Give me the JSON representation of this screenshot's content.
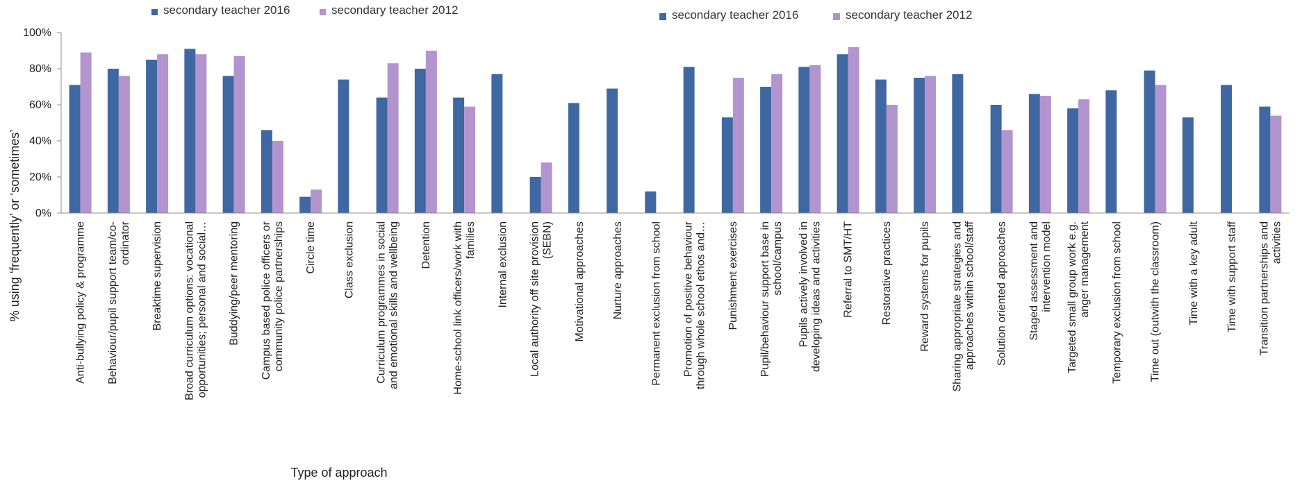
{
  "chart_data": {
    "type": "bar",
    "xlabel": "Type of approach",
    "ylabel": "% using ‘frequently’ or ‘sometimes’",
    "ylim": [
      0,
      100
    ],
    "yticks": [
      "0%",
      "20%",
      "40%",
      "60%",
      "80%",
      "100%"
    ],
    "legend_position": "top",
    "legend_repeated": true,
    "categories": [
      [
        "Anti-bullying policy & programme"
      ],
      [
        "Behaviour/pupil support team/co-",
        "ordinator"
      ],
      [
        "Breaktime supervision"
      ],
      [
        "Broad curriculum options: vocational",
        "opportunities; personal and social…"
      ],
      [
        "Buddying/peer mentoring"
      ],
      [
        "Campus based police officers or",
        "community police partnerships"
      ],
      [
        "Circle time"
      ],
      [
        "Class exclusion"
      ],
      [
        "Curriculum programmes in social",
        "and emotional skills and wellbeing"
      ],
      [
        "Detention"
      ],
      [
        "Home-school link officers/work with",
        "families"
      ],
      [
        "Internal exclusion"
      ],
      [
        "Local authority off site provision",
        "(SEBN)"
      ],
      [
        "Motivational approaches"
      ],
      [
        "Nurture approaches"
      ],
      [
        "Permanent exclusion from school"
      ],
      [
        "Promotion of positive behaviour",
        "through whole school ethos and…"
      ],
      [
        "Punishment exercises"
      ],
      [
        "Pupil/behaviour support  base in",
        "school/campus"
      ],
      [
        "Pupils actively involved in",
        "developing ideas and activities"
      ],
      [
        "Referral to SMT/HT"
      ],
      [
        "Restorative practices"
      ],
      [
        "Reward systems for pupils"
      ],
      [
        "Sharing appropriate strategies and",
        "approaches within school/staff"
      ],
      [
        "Solution oriented approaches"
      ],
      [
        "Staged assessment and",
        "intervention model"
      ],
      [
        "Targeted small group work e.g.",
        "anger management"
      ],
      [
        "Temporary exclusion from school"
      ],
      [
        "Time out (outwith the classroom)"
      ],
      [
        "Time with a key adult"
      ],
      [
        "Time with support staff"
      ],
      [
        "Transition partnerships and",
        "activities"
      ]
    ],
    "series": [
      {
        "name": "secondary teacher 2016",
        "color": "#3f67a1",
        "values": [
          71,
          80,
          85,
          91,
          76,
          46,
          9,
          74,
          64,
          80,
          64,
          77,
          20,
          61,
          69,
          12,
          81,
          53,
          70,
          81,
          88,
          74,
          75,
          77,
          60,
          66,
          58,
          68,
          79,
          53,
          71,
          59
        ]
      },
      {
        "name": "secondary teacher 2012",
        "color": "#b294cf",
        "values": [
          89,
          76,
          88,
          88,
          87,
          40,
          13,
          null,
          83,
          90,
          59,
          null,
          28,
          null,
          null,
          null,
          null,
          75,
          77,
          82,
          92,
          60,
          76,
          null,
          46,
          65,
          63,
          null,
          71,
          null,
          null,
          54
        ]
      }
    ]
  }
}
